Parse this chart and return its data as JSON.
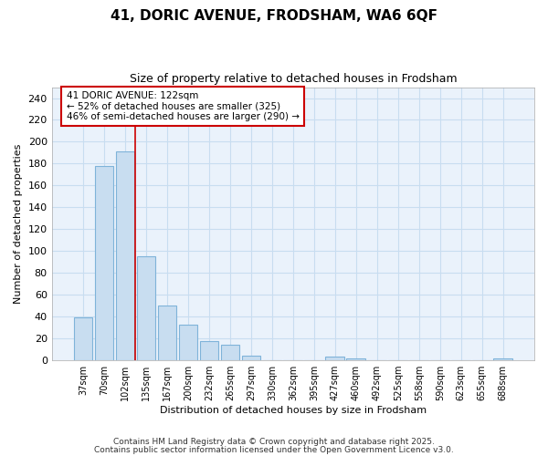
{
  "title1": "41, DORIC AVENUE, FRODSHAM, WA6 6QF",
  "title2": "Size of property relative to detached houses in Frodsham",
  "xlabel": "Distribution of detached houses by size in Frodsham",
  "ylabel": "Number of detached properties",
  "bar_labels": [
    "37sqm",
    "70sqm",
    "102sqm",
    "135sqm",
    "167sqm",
    "200sqm",
    "232sqm",
    "265sqm",
    "297sqm",
    "330sqm",
    "362sqm",
    "395sqm",
    "427sqm",
    "460sqm",
    "492sqm",
    "525sqm",
    "558sqm",
    "590sqm",
    "623sqm",
    "655sqm",
    "688sqm"
  ],
  "bar_values": [
    39,
    178,
    191,
    95,
    50,
    33,
    18,
    14,
    4,
    0,
    0,
    0,
    3,
    2,
    0,
    0,
    0,
    0,
    0,
    0,
    2
  ],
  "bar_color": "#c8ddf0",
  "bar_edge_color": "#7fb3d9",
  "grid_color": "#c8ddf0",
  "plot_bg_color": "#eaf2fb",
  "fig_bg_color": "#ffffff",
  "vline_x_index": 2.5,
  "annotation_text": "41 DORIC AVENUE: 122sqm\n← 52% of detached houses are smaller (325)\n46% of semi-detached houses are larger (290) →",
  "annotation_box_color": "#ffffff",
  "annotation_box_edge": "#cc0000",
  "vline_color": "#cc0000",
  "ylim": [
    0,
    250
  ],
  "yticks": [
    0,
    20,
    40,
    60,
    80,
    100,
    120,
    140,
    160,
    180,
    200,
    220,
    240
  ],
  "footnote1": "Contains HM Land Registry data © Crown copyright and database right 2025.",
  "footnote2": "Contains public sector information licensed under the Open Government Licence v3.0."
}
